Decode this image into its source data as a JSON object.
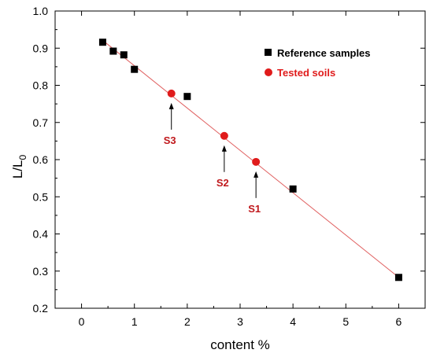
{
  "chart_data": {
    "type": "scatter",
    "xlabel": "content %",
    "ylabel_main": "L/L",
    "ylabel_sub": "0",
    "xlim": [
      -0.5,
      6.5
    ],
    "ylim": [
      0.2,
      1.0
    ],
    "x_ticks": [
      "0",
      "1",
      "2",
      "3",
      "4",
      "5",
      "6"
    ],
    "y_ticks": [
      "0.2",
      "0.3",
      "0.4",
      "0.5",
      "0.6",
      "0.7",
      "0.8",
      "0.9",
      "1.0"
    ],
    "grid": false,
    "legend_position": "top-right",
    "series": [
      {
        "name": "Reference samples",
        "marker": "square",
        "color": "#000000",
        "points": [
          {
            "x": 0.4,
            "y": 0.916
          },
          {
            "x": 0.6,
            "y": 0.892
          },
          {
            "x": 0.8,
            "y": 0.882
          },
          {
            "x": 1.0,
            "y": 0.843
          },
          {
            "x": 2.0,
            "y": 0.77
          },
          {
            "x": 4.0,
            "y": 0.521
          },
          {
            "x": 6.0,
            "y": 0.283
          }
        ]
      },
      {
        "name": "Tested soils",
        "marker": "circle",
        "color": "#e01b1b",
        "points": [
          {
            "x": 1.7,
            "y": 0.778
          },
          {
            "x": 2.7,
            "y": 0.664
          },
          {
            "x": 3.3,
            "y": 0.594
          }
        ]
      }
    ],
    "fit_line": {
      "color": "#e06060",
      "from": {
        "x": 0.4,
        "y": 0.921
      },
      "to": {
        "x": 6.0,
        "y": 0.283
      }
    },
    "annotations": [
      {
        "text": "S3",
        "point_x": 1.7,
        "point_y": 0.778,
        "placement": "below"
      },
      {
        "text": "S2",
        "point_x": 2.7,
        "point_y": 0.664,
        "placement": "below"
      },
      {
        "text": "S1",
        "point_x": 3.3,
        "point_y": 0.594,
        "placement": "below"
      }
    ]
  }
}
